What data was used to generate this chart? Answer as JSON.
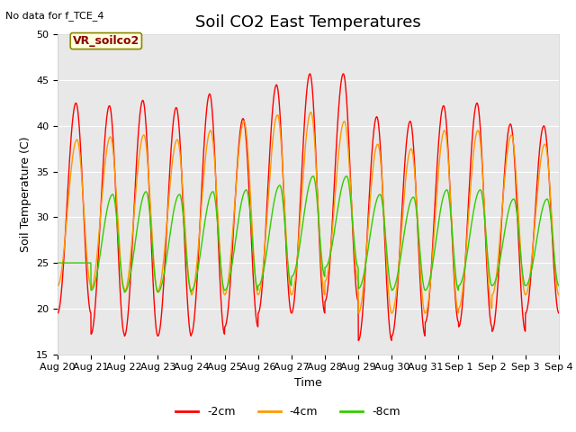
{
  "title": "Soil CO2 East Temperatures",
  "no_data_label": "No data for f_TCE_4",
  "annotation_label": "VR_soilco2",
  "xlabel": "Time",
  "ylabel": "Soil Temperature (C)",
  "ylim": [
    15,
    50
  ],
  "yticks": [
    15,
    20,
    25,
    30,
    35,
    40,
    45,
    50
  ],
  "x_tick_labels": [
    "Aug 20",
    "Aug 21",
    "Aug 22",
    "Aug 23",
    "Aug 24",
    "Aug 25",
    "Aug 26",
    "Aug 27",
    "Aug 28",
    "Aug 29",
    "Aug 30",
    "Aug 31",
    "Sep 1",
    "Sep 2",
    "Sep 3",
    "Sep 4"
  ],
  "line_colors": {
    "2cm": "#ff0000",
    "4cm": "#ff9900",
    "8cm": "#33cc00"
  },
  "legend_labels": [
    "-2cm",
    "-4cm",
    "-8cm"
  ],
  "legend_colors": [
    "#ff0000",
    "#ff9900",
    "#33cc00"
  ],
  "background_color": "#e8e8e8",
  "n_days": 15,
  "peaks_2cm": [
    42.5,
    42.2,
    42.8,
    42.0,
    43.5,
    40.8,
    44.5,
    45.7,
    45.7,
    41.0,
    40.5,
    42.2,
    42.5,
    40.2,
    40.0
  ],
  "troughs_2cm": [
    19.5,
    17.2,
    17.0,
    17.0,
    17.2,
    18.0,
    19.5,
    19.5,
    20.8,
    16.5,
    17.0,
    18.5,
    18.0,
    17.5,
    19.5
  ],
  "peaks_4cm": [
    38.5,
    38.8,
    39.0,
    38.5,
    39.5,
    40.5,
    41.2,
    41.5,
    40.5,
    38.0,
    37.5,
    39.5,
    39.5,
    39.0,
    38.0
  ],
  "troughs_4cm": [
    22.5,
    22.2,
    21.8,
    22.0,
    21.5,
    21.5,
    21.5,
    21.5,
    23.0,
    19.5,
    19.5,
    19.5,
    20.0,
    21.5,
    21.5
  ],
  "peaks_8cm": [
    25.0,
    32.5,
    32.8,
    32.5,
    32.8,
    33.0,
    33.5,
    34.5,
    34.5,
    32.5,
    32.2,
    33.0,
    33.0,
    32.0,
    32.0
  ],
  "troughs_8cm": [
    25.0,
    22.0,
    21.8,
    21.8,
    22.0,
    22.0,
    22.5,
    23.5,
    24.5,
    22.2,
    22.0,
    22.0,
    22.5,
    22.5,
    22.5
  ],
  "title_fontsize": 13,
  "axis_label_fontsize": 9,
  "tick_fontsize": 8,
  "legend_fontsize": 9
}
